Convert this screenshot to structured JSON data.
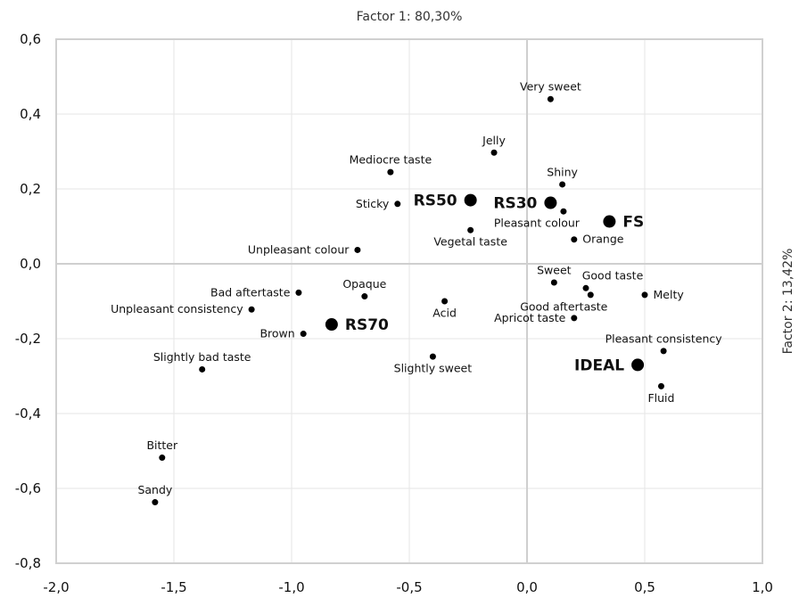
{
  "chart_data": {
    "type": "scatter",
    "xlabel": "Factor 1: 80,30%",
    "ylabel": "Factor 2: 13,42%",
    "xlim": [
      -2.0,
      1.0
    ],
    "ylim": [
      -0.8,
      0.6
    ],
    "grid": true,
    "x_ticks": [
      {
        "value": -2.0,
        "label": "-2,0"
      },
      {
        "value": -1.5,
        "label": "-1,5"
      },
      {
        "value": -1.0,
        "label": "-1,0"
      },
      {
        "value": -0.5,
        "label": "-0,5"
      },
      {
        "value": 0.0,
        "label": "0,0"
      },
      {
        "value": 0.5,
        "label": "0,5"
      },
      {
        "value": 1.0,
        "label": "1,0"
      }
    ],
    "y_ticks": [
      {
        "value": 0.6,
        "label": "0,6"
      },
      {
        "value": 0.4,
        "label": "0,4"
      },
      {
        "value": 0.2,
        "label": "0,2"
      },
      {
        "value": 0.0,
        "label": "0,0"
      },
      {
        "value": -0.2,
        "label": "-0,2"
      },
      {
        "value": -0.4,
        "label": "-0,4"
      },
      {
        "value": -0.6,
        "label": "-0,6"
      },
      {
        "value": -0.8,
        "label": "-0,8"
      }
    ],
    "products": [
      {
        "label": "RS50",
        "x": -0.24,
        "y": 0.17,
        "label_side": "left"
      },
      {
        "label": "RS30",
        "x": 0.1,
        "y": 0.163,
        "label_side": "left"
      },
      {
        "label": "FS",
        "x": 0.35,
        "y": 0.113,
        "label_side": "right"
      },
      {
        "label": "RS70",
        "x": -0.83,
        "y": -0.162,
        "label_side": "right"
      },
      {
        "label": "IDEAL",
        "x": 0.47,
        "y": -0.27,
        "label_side": "left"
      }
    ],
    "attributes": [
      {
        "label": "Very sweet",
        "x": 0.1,
        "y": 0.44,
        "label_side": "above"
      },
      {
        "label": "Jelly",
        "x": -0.14,
        "y": 0.297,
        "label_side": "above"
      },
      {
        "label": "Mediocre taste",
        "x": -0.58,
        "y": 0.245,
        "label_side": "above"
      },
      {
        "label": "Shiny",
        "x": 0.15,
        "y": 0.212,
        "label_side": "above"
      },
      {
        "label": "Sticky",
        "x": -0.55,
        "y": 0.16,
        "label_side": "left"
      },
      {
        "label": "Pleasant colour",
        "x": 0.155,
        "y": 0.14,
        "label_side": "below-left"
      },
      {
        "label": "Vegetal taste",
        "x": -0.24,
        "y": 0.09,
        "label_side": "below"
      },
      {
        "label": "Orange",
        "x": 0.2,
        "y": 0.065,
        "label_side": "right"
      },
      {
        "label": "Unpleasant colour",
        "x": -0.72,
        "y": 0.037,
        "label_side": "left"
      },
      {
        "label": "Sweet",
        "x": 0.115,
        "y": -0.05,
        "label_side": "above"
      },
      {
        "label": "Good taste",
        "x": 0.25,
        "y": -0.065,
        "label_side": "above-right"
      },
      {
        "label": "Good aftertaste",
        "x": 0.27,
        "y": -0.083,
        "label_side": "below-left"
      },
      {
        "label": "Melty",
        "x": 0.5,
        "y": -0.083,
        "label_side": "right"
      },
      {
        "label": "Opaque",
        "x": -0.69,
        "y": -0.087,
        "label_side": "above"
      },
      {
        "label": "Bad aftertaste",
        "x": -0.97,
        "y": -0.077,
        "label_side": "left"
      },
      {
        "label": "Acid",
        "x": -0.35,
        "y": -0.1,
        "label_side": "below"
      },
      {
        "label": "Unpleasant consistency",
        "x": -1.17,
        "y": -0.122,
        "label_side": "left"
      },
      {
        "label": "Apricot taste",
        "x": 0.2,
        "y": -0.145,
        "label_side": "left"
      },
      {
        "label": "Brown",
        "x": -0.95,
        "y": -0.187,
        "label_side": "left"
      },
      {
        "label": "Pleasant consistency",
        "x": 0.58,
        "y": -0.233,
        "label_side": "above"
      },
      {
        "label": "Slightly sweet",
        "x": -0.4,
        "y": -0.248,
        "label_side": "below"
      },
      {
        "label": "Slightly bad taste",
        "x": -1.38,
        "y": -0.282,
        "label_side": "above"
      },
      {
        "label": "Fluid",
        "x": 0.57,
        "y": -0.327,
        "label_side": "below"
      },
      {
        "label": "Bitter",
        "x": -1.55,
        "y": -0.518,
        "label_side": "above"
      },
      {
        "label": "Sandy",
        "x": -1.58,
        "y": -0.637,
        "label_side": "above"
      }
    ]
  }
}
